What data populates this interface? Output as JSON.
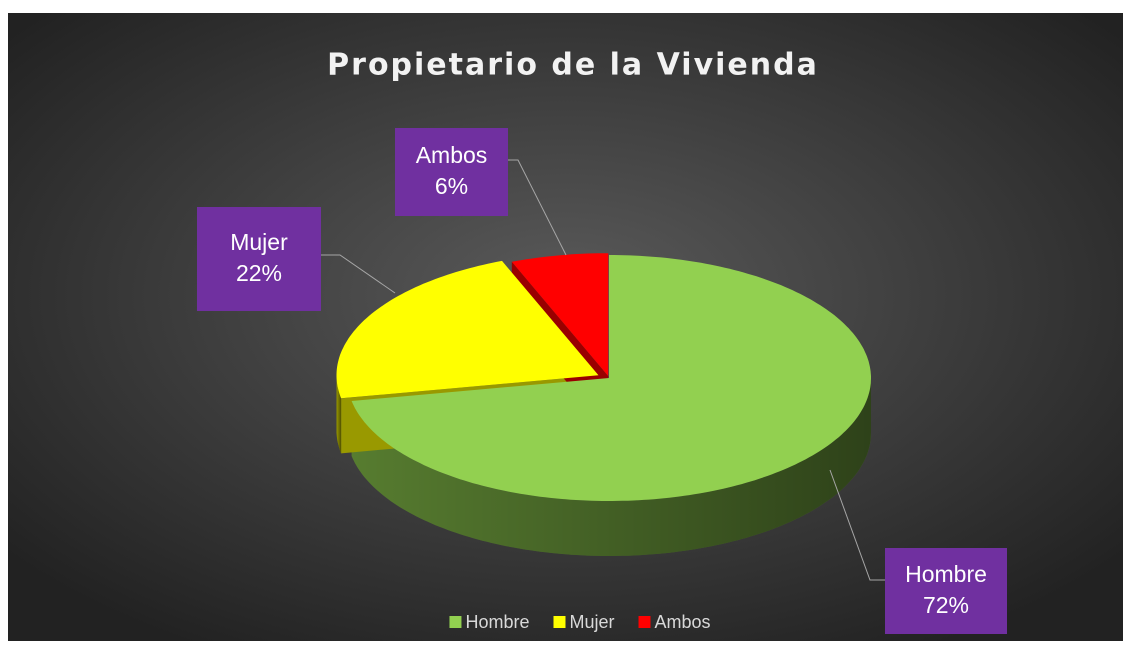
{
  "chart_data": {
    "type": "pie",
    "title": "Propietario de la Vivienda",
    "categories": [
      "Hombre",
      "Mujer",
      "Ambos"
    ],
    "values": [
      72,
      22,
      6
    ],
    "value_labels": [
      "72%",
      "22%",
      "6%"
    ],
    "colors": [
      "#92d050",
      "#ffff00",
      "#ff0000"
    ],
    "legend": "bottom"
  }
}
